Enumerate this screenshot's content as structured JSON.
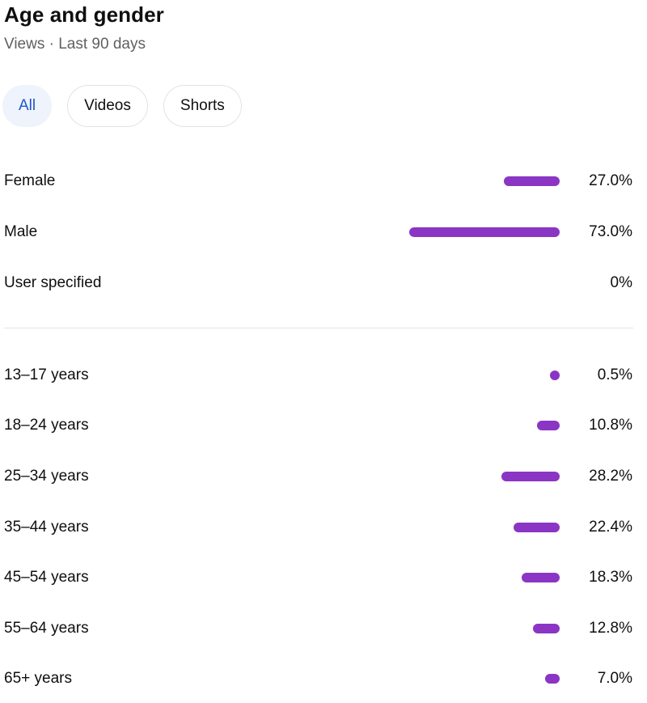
{
  "header": {
    "title": "Age and gender",
    "subtitle": "Views · Last 90 days"
  },
  "filters": {
    "active": "All",
    "items": [
      {
        "label": "All",
        "active": true
      },
      {
        "label": "Videos",
        "active": false
      },
      {
        "label": "Shorts",
        "active": false
      }
    ]
  },
  "colors": {
    "bar": "#8b35c4",
    "active_chip_text": "#1f58c6",
    "active_chip_bg": "#eef3fc"
  },
  "gender": [
    {
      "label": "Female",
      "value": "27.0%",
      "pct": 27.0
    },
    {
      "label": "Male",
      "value": "73.0%",
      "pct": 73.0
    },
    {
      "label": "User specified",
      "value": "0%",
      "pct": 0
    }
  ],
  "age": [
    {
      "label": "13–17 years",
      "value": "0.5%",
      "pct": 0.5
    },
    {
      "label": "18–24 years",
      "value": "10.8%",
      "pct": 10.8
    },
    {
      "label": "25–34 years",
      "value": "28.2%",
      "pct": 28.2
    },
    {
      "label": "35–44 years",
      "value": "22.4%",
      "pct": 22.4
    },
    {
      "label": "45–54 years",
      "value": "18.3%",
      "pct": 18.3
    },
    {
      "label": "55–64 years",
      "value": "12.8%",
      "pct": 12.8
    },
    {
      "label": "65+ years",
      "value": "7.0%",
      "pct": 7.0
    }
  ]
}
